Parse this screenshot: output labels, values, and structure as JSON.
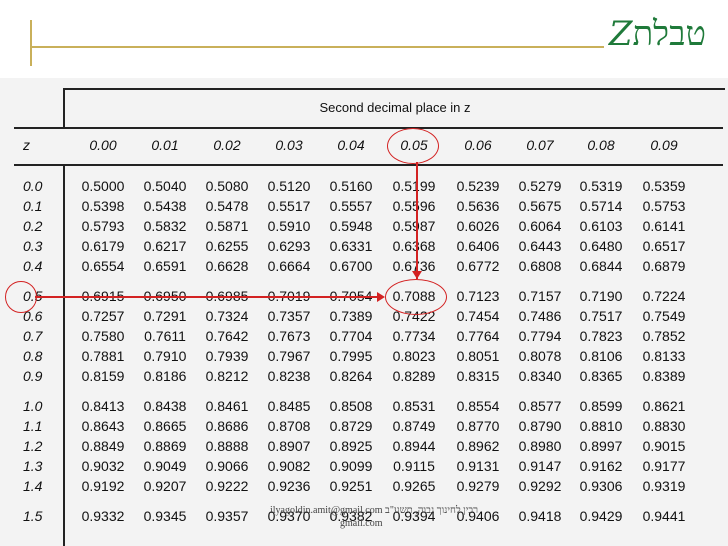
{
  "slide": {
    "title_hebrew": "טבלת",
    "title_z": "Z"
  },
  "table": {
    "header_title": "Second decimal place in z",
    "z_label": "z",
    "columns": [
      "0.00",
      "0.01",
      "0.02",
      "0.03",
      "0.04",
      "0.05",
      "0.06",
      "0.07",
      "0.08",
      "0.09"
    ],
    "rows": [
      {
        "z": "0.0",
        "values": [
          "0.5000",
          "0.5040",
          "0.5080",
          "0.5120",
          "0.5160",
          "0.5199",
          "0.5239",
          "0.5279",
          "0.5319",
          "0.5359"
        ]
      },
      {
        "z": "0.1",
        "values": [
          "0.5398",
          "0.5438",
          "0.5478",
          "0.5517",
          "0.5557",
          "0.5596",
          "0.5636",
          "0.5675",
          "0.5714",
          "0.5753"
        ]
      },
      {
        "z": "0.2",
        "values": [
          "0.5793",
          "0.5832",
          "0.5871",
          "0.5910",
          "0.5948",
          "0.5987",
          "0.6026",
          "0.6064",
          "0.6103",
          "0.6141"
        ]
      },
      {
        "z": "0.3",
        "values": [
          "0.6179",
          "0.6217",
          "0.6255",
          "0.6293",
          "0.6331",
          "0.6368",
          "0.6406",
          "0.6443",
          "0.6480",
          "0.6517"
        ]
      },
      {
        "z": "0.4",
        "values": [
          "0.6554",
          "0.6591",
          "0.6628",
          "0.6664",
          "0.6700",
          "0.6736",
          "0.6772",
          "0.6808",
          "0.6844",
          "0.6879"
        ]
      },
      {
        "z": "0.5",
        "values": [
          "0.6915",
          "0.6950",
          "0.6985",
          "0.7019",
          "0.7054",
          "0.7088",
          "0.7123",
          "0.7157",
          "0.7190",
          "0.7224"
        ]
      },
      {
        "z": "0.6",
        "values": [
          "0.7257",
          "0.7291",
          "0.7324",
          "0.7357",
          "0.7389",
          "0.7422",
          "0.7454",
          "0.7486",
          "0.7517",
          "0.7549"
        ]
      },
      {
        "z": "0.7",
        "values": [
          "0.7580",
          "0.7611",
          "0.7642",
          "0.7673",
          "0.7704",
          "0.7734",
          "0.7764",
          "0.7794",
          "0.7823",
          "0.7852"
        ]
      },
      {
        "z": "0.8",
        "values": [
          "0.7881",
          "0.7910",
          "0.7939",
          "0.7967",
          "0.7995",
          "0.8023",
          "0.8051",
          "0.8078",
          "0.8106",
          "0.8133"
        ]
      },
      {
        "z": "0.9",
        "values": [
          "0.8159",
          "0.8186",
          "0.8212",
          "0.8238",
          "0.8264",
          "0.8289",
          "0.8315",
          "0.8340",
          "0.8365",
          "0.8389"
        ]
      },
      {
        "z": "1.0",
        "values": [
          "0.8413",
          "0.8438",
          "0.8461",
          "0.8485",
          "0.8508",
          "0.8531",
          "0.8554",
          "0.8577",
          "0.8599",
          "0.8621"
        ]
      },
      {
        "z": "1.1",
        "values": [
          "0.8643",
          "0.8665",
          "0.8686",
          "0.8708",
          "0.8729",
          "0.8749",
          "0.8770",
          "0.8790",
          "0.8810",
          "0.8830"
        ]
      },
      {
        "z": "1.2",
        "values": [
          "0.8849",
          "0.8869",
          "0.8888",
          "0.8907",
          "0.8925",
          "0.8944",
          "0.8962",
          "0.8980",
          "0.8997",
          "0.9015"
        ]
      },
      {
        "z": "1.3",
        "values": [
          "0.9032",
          "0.9049",
          "0.9066",
          "0.9082",
          "0.9099",
          "0.9115",
          "0.9131",
          "0.9147",
          "0.9162",
          "0.9177"
        ]
      },
      {
        "z": "1.4",
        "values": [
          "0.9192",
          "0.9207",
          "0.9222",
          "0.9236",
          "0.9251",
          "0.9265",
          "0.9279",
          "0.9292",
          "0.9306",
          "0.9319"
        ]
      },
      {
        "z": "1.5",
        "values": [
          "0.9332",
          "0.9345",
          "0.9357",
          "0.9370",
          "0.9382",
          "0.9394",
          "0.9406",
          "0.9418",
          "0.9429",
          "0.9441"
        ]
      }
    ]
  },
  "watermark": {
    "line1": "ilyagoldin.amit@gmail.com רבין לחינוך גבוה, תשע\"ב",
    "line2": "gmail.com"
  },
  "colors": {
    "title": "#1f7a3a",
    "accent_line": "#c9b05a",
    "highlight": "#d32222"
  }
}
